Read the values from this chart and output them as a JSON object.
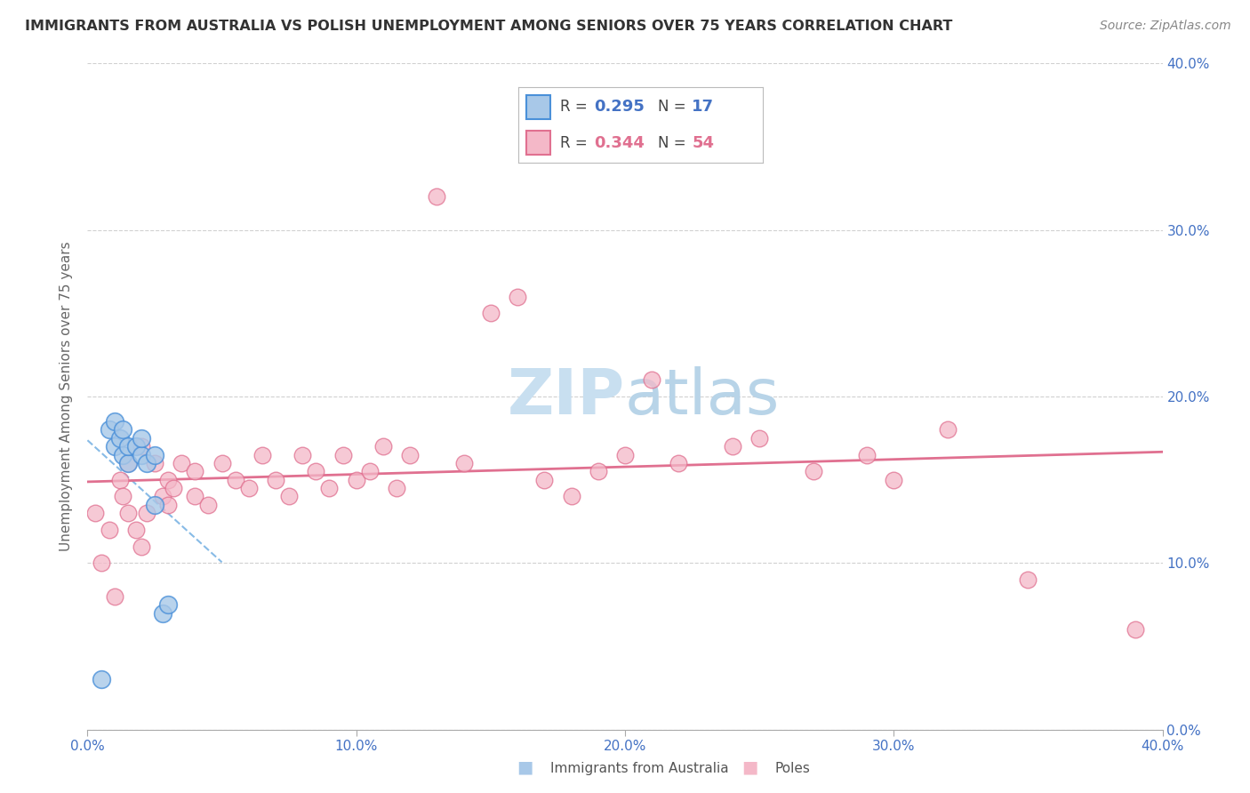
{
  "title": "IMMIGRANTS FROM AUSTRALIA VS POLISH UNEMPLOYMENT AMONG SENIORS OVER 75 YEARS CORRELATION CHART",
  "source": "Source: ZipAtlas.com",
  "ylabel": "Unemployment Among Seniors over 75 years",
  "r_australia": 0.295,
  "n_australia": 17,
  "r_poles": 0.344,
  "n_poles": 54,
  "color_australia_fill": "#a8c8e8",
  "color_australia_edge": "#4a90d9",
  "color_poles_fill": "#f4b8c8",
  "color_poles_edge": "#e07090",
  "trendline_australia_color": "#6aaae0",
  "trendline_poles_color": "#e07090",
  "watermark_color": "#c8dff0",
  "aus_x": [
    0.5,
    0.8,
    1.0,
    1.0,
    1.2,
    1.3,
    1.3,
    1.5,
    1.5,
    1.8,
    2.0,
    2.0,
    2.2,
    2.5,
    2.5,
    2.8,
    3.0
  ],
  "aus_y": [
    3.0,
    18.0,
    18.5,
    17.0,
    17.5,
    16.5,
    18.0,
    16.0,
    17.0,
    17.0,
    16.5,
    17.5,
    16.0,
    16.5,
    13.5,
    7.0,
    7.5
  ],
  "poles_x": [
    0.3,
    0.5,
    0.8,
    1.0,
    1.2,
    1.3,
    1.5,
    1.5,
    1.8,
    2.0,
    2.0,
    2.2,
    2.5,
    2.8,
    3.0,
    3.0,
    3.2,
    3.5,
    4.0,
    4.0,
    4.5,
    5.0,
    5.5,
    6.0,
    6.5,
    7.0,
    7.5,
    8.0,
    8.5,
    9.0,
    9.5,
    10.0,
    10.5,
    11.0,
    11.5,
    12.0,
    13.0,
    14.0,
    15.0,
    16.0,
    17.0,
    18.0,
    19.0,
    20.0,
    21.0,
    22.0,
    24.0,
    25.0,
    27.0,
    29.0,
    30.0,
    32.0,
    35.0,
    39.0
  ],
  "poles_y": [
    13.0,
    10.0,
    12.0,
    8.0,
    15.0,
    14.0,
    13.0,
    16.0,
    12.0,
    11.0,
    17.0,
    13.0,
    16.0,
    14.0,
    13.5,
    15.0,
    14.5,
    16.0,
    14.0,
    15.5,
    13.5,
    16.0,
    15.0,
    14.5,
    16.5,
    15.0,
    14.0,
    16.5,
    15.5,
    14.5,
    16.5,
    15.0,
    15.5,
    17.0,
    14.5,
    16.5,
    32.0,
    16.0,
    25.0,
    26.0,
    15.0,
    14.0,
    15.5,
    16.5,
    21.0,
    16.0,
    17.0,
    17.5,
    15.5,
    16.5,
    15.0,
    18.0,
    9.0,
    6.0
  ]
}
